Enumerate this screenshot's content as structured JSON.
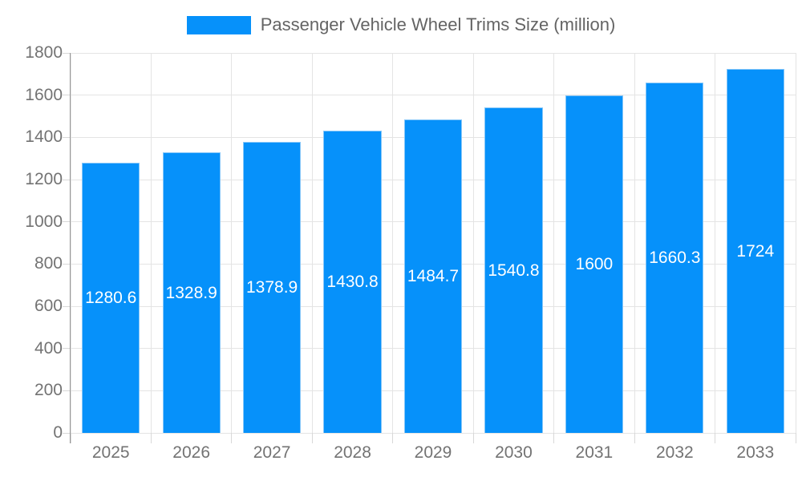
{
  "chart_data": {
    "type": "bar",
    "title": "Passenger Vehicle Wheel Trims Size (million)",
    "legend": {
      "label": "Passenger Vehicle Wheel Trims Size (million)",
      "position": "top"
    },
    "categories": [
      "2025",
      "2026",
      "2027",
      "2028",
      "2029",
      "2030",
      "2031",
      "2032",
      "2033"
    ],
    "values": [
      1280.6,
      1328.9,
      1378.9,
      1430.8,
      1484.7,
      1540.8,
      1600,
      1660.3,
      1724
    ],
    "value_labels": [
      "1280.6",
      "1328.9",
      "1378.9",
      "1430.8",
      "1484.7",
      "1540.8",
      "1600",
      "1660.3",
      "1724"
    ],
    "xlabel": "",
    "ylabel": "",
    "ylim": [
      0,
      1800
    ],
    "yticks": [
      "0",
      "200",
      "400",
      "600",
      "800",
      "1000",
      "1200",
      "1400",
      "1600",
      "1800"
    ],
    "grid": true,
    "colors": {
      "bar_fill": "#0691fa",
      "bar_border": "#85c6f9",
      "bar_value_text": "#ffffff",
      "grid_line": "#e4e4e4",
      "axis_line": "#969696",
      "tick_mark": "#d8d8d8",
      "axis_text": "#737373",
      "legend_text": "#646464",
      "background": "#ffffff"
    }
  }
}
